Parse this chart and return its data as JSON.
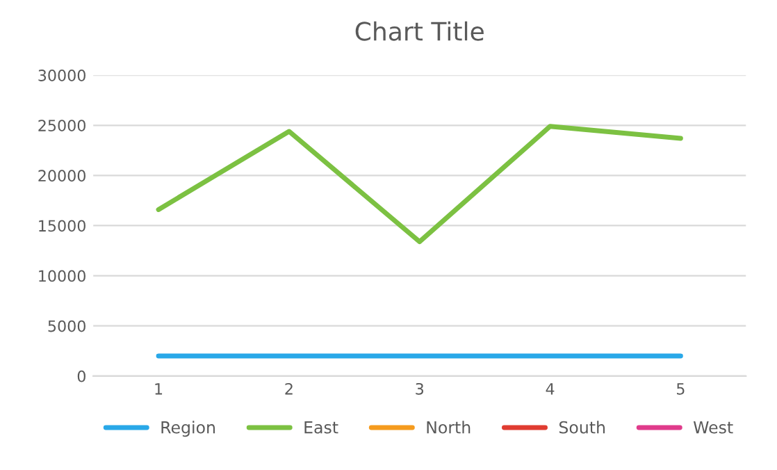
{
  "chart_data": {
    "type": "line",
    "title": "Chart Title",
    "categories": [
      "1",
      "2",
      "3",
      "4",
      "5"
    ],
    "series": [
      {
        "name": "Region",
        "color": "#29a8e8",
        "values": [
          2000,
          2000,
          2000,
          2000,
          2000
        ]
      },
      {
        "name": "East",
        "color": "#7cc142",
        "values": [
          16600,
          24400,
          13400,
          24900,
          23700
        ]
      },
      {
        "name": "North",
        "color": "#f59b1e",
        "values": [
          null,
          null,
          null,
          null,
          null
        ]
      },
      {
        "name": "South",
        "color": "#e03c31",
        "values": [
          null,
          null,
          null,
          null,
          null
        ]
      },
      {
        "name": "West",
        "color": "#e03b8b",
        "values": [
          null,
          null,
          null,
          null,
          null
        ]
      }
    ],
    "ylim": [
      0,
      30000
    ],
    "yticks": [
      0,
      5000,
      10000,
      15000,
      20000,
      25000,
      30000
    ],
    "grid": "y",
    "legend": "bottom",
    "marker": "none",
    "line_style": "solid"
  }
}
